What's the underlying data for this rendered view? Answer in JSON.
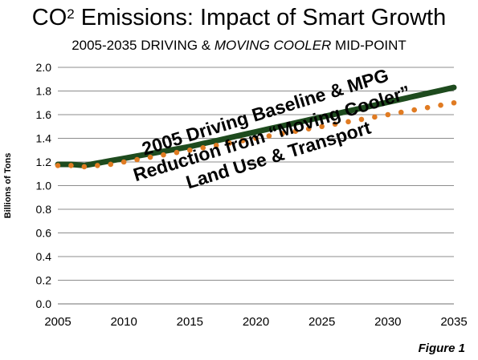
{
  "title": {
    "prefix": "CO",
    "sup": "2",
    "suffix": " Emissions: Impact of Smart Growth"
  },
  "subtitle": {
    "part1": "2005-2035 DRIVING & ",
    "italic": "MOVING COOLER",
    "part2": " MID-POINT"
  },
  "figure_label": "Figure 1",
  "chart_data": {
    "type": "line",
    "title": "CO2 Emissions: Impact of Smart Growth",
    "subtitle": "2005-2035 DRIVING & MOVING COOLER MID-POINT",
    "xlabel": "",
    "ylabel": "Billions of Tons",
    "xlim": [
      2005,
      2035
    ],
    "ylim": [
      0,
      2.0
    ],
    "x_ticks": [
      "2005",
      "2010",
      "2015",
      "2020",
      "2025",
      "2030",
      "2035"
    ],
    "y_ticks": [
      "0.0",
      "0.2",
      "0.4",
      "0.6",
      "0.8",
      "1.0",
      "1.2",
      "1.4",
      "1.6",
      "1.8",
      "2.0"
    ],
    "grid": true,
    "legend": "none",
    "annotation": [
      "2005 Driving Baseline & MPG",
      "Reduction from “Moving Cooler”",
      "Land Use & Transport"
    ],
    "x": [
      2005,
      2006,
      2007,
      2008,
      2009,
      2010,
      2011,
      2012,
      2013,
      2014,
      2015,
      2016,
      2017,
      2018,
      2019,
      2020,
      2021,
      2022,
      2023,
      2024,
      2025,
      2026,
      2027,
      2028,
      2029,
      2030,
      2031,
      2032,
      2033,
      2034,
      2035
    ],
    "series": [
      {
        "color": "#1e4b1e",
        "style": "thick-solid",
        "values": [
          1.18,
          1.18,
          1.17,
          1.19,
          1.21,
          1.23,
          1.25,
          1.27,
          1.29,
          1.31,
          1.33,
          1.355,
          1.38,
          1.405,
          1.43,
          1.455,
          1.48,
          1.505,
          1.53,
          1.555,
          1.58,
          1.605,
          1.63,
          1.655,
          1.68,
          1.705,
          1.73,
          1.755,
          1.78,
          1.805,
          1.83
        ]
      },
      {
        "color": "#e07b22",
        "style": "dotted",
        "values": [
          1.17,
          1.17,
          1.16,
          1.17,
          1.18,
          1.2,
          1.22,
          1.24,
          1.26,
          1.28,
          1.3,
          1.32,
          1.34,
          1.36,
          1.38,
          1.4,
          1.42,
          1.44,
          1.46,
          1.48,
          1.5,
          1.52,
          1.54,
          1.56,
          1.58,
          1.6,
          1.62,
          1.64,
          1.66,
          1.68,
          1.7
        ]
      }
    ]
  }
}
